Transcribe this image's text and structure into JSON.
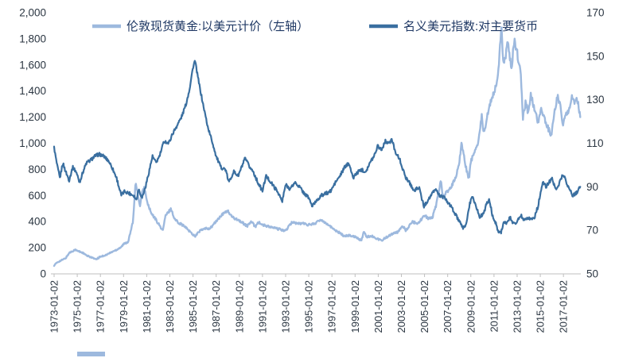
{
  "chart_data": {
    "type": "line",
    "title": "",
    "legend_position": "top",
    "grid": false,
    "legend": [
      {
        "label": "伦敦现货黄金:以美元计价（左轴）",
        "color": "#9db9de"
      },
      {
        "label": "名义美元指数:对主要货币",
        "color": "#3a6fa0"
      }
    ],
    "x_axis": {
      "range": [
        1973,
        2018.5
      ],
      "tick_years": [
        1973,
        1975,
        1977,
        1979,
        1981,
        1983,
        1985,
        1987,
        1989,
        1991,
        1993,
        1995,
        1997,
        1999,
        2001,
        2003,
        2005,
        2007,
        2009,
        2011,
        2013,
        2015,
        2017
      ],
      "tick_labels": [
        "1973-01-02",
        "1975-01-02",
        "1977-01-02",
        "1979-01-02",
        "1981-01-02",
        "1983-01-02",
        "1985-01-02",
        "1987-01-02",
        "1989-01-02",
        "1991-01-02",
        "1993-01-02",
        "1995-01-02",
        "1997-01-02",
        "1999-01-02",
        "2001-01-02",
        "2003-01-02",
        "2005-01-02",
        "2007-01-02",
        "2009-01-02",
        "2011-01-02",
        "2013-01-02",
        "2015-01-02",
        "2017-01-02"
      ]
    },
    "left_axis": {
      "min": 0,
      "max": 2000,
      "step": 200,
      "tick_labels": [
        "0",
        "200",
        "400",
        "600",
        "800",
        "1,000",
        "1,200",
        "1,400",
        "1,600",
        "1,800",
        "2,000"
      ]
    },
    "right_axis": {
      "min": 50,
      "max": 170,
      "step": 20,
      "tick_labels": [
        "50",
        "70",
        "90",
        "110",
        "130",
        "150",
        "170"
      ]
    },
    "series": [
      {
        "name": "伦敦现货黄金:以美元计价（左轴）",
        "axis": "left",
        "color": "#9db9de",
        "x": [
          1973,
          1973.3,
          1973.6,
          1974,
          1974.3,
          1974.8,
          1975,
          1975.4,
          1975.8,
          1976.2,
          1976.6,
          1977,
          1977.5,
          1978,
          1978.4,
          1978.8,
          1979,
          1979.4,
          1979.8,
          1980.05,
          1980.2,
          1980.4,
          1980.6,
          1980.8,
          1981,
          1981.4,
          1981.8,
          1982,
          1982.4,
          1982.6,
          1983.1,
          1983.4,
          1983.8,
          1984,
          1984.5,
          1985,
          1985.2,
          1985.6,
          1986,
          1986.5,
          1987,
          1987.5,
          1987.95,
          1988.4,
          1988.8,
          1989.2,
          1989.7,
          1990,
          1990.4,
          1990.6,
          1991,
          1991.5,
          1992,
          1992.6,
          1993,
          1993.6,
          1994,
          1994.5,
          1995,
          1995.5,
          1996.1,
          1996.6,
          1997,
          1997.5,
          1998,
          1998.5,
          1999,
          1999.55,
          1999.75,
          2000,
          2000.5,
          2001,
          2001.3,
          2001.8,
          2002.2,
          2002.7,
          2003.1,
          2003.4,
          2003.95,
          2004.3,
          2004.6,
          2004.95,
          2005.3,
          2005.7,
          2006,
          2006.4,
          2006.6,
          2006.9,
          2007.3,
          2007.7,
          2008,
          2008.2,
          2008.45,
          2008.65,
          2008.85,
          2009,
          2009.3,
          2009.6,
          2009.95,
          2010.1,
          2010.5,
          2010.8,
          2011,
          2011.35,
          2011.65,
          2011.8,
          2012,
          2012.2,
          2012.5,
          2012.75,
          2013,
          2013.3,
          2013.5,
          2013.75,
          2013.95,
          2014.2,
          2014.55,
          2014.85,
          2015.05,
          2015.4,
          2015.95,
          2016.2,
          2016.5,
          2016.8,
          2016.95,
          2017.2,
          2017.55,
          2017.7,
          2018,
          2018.2,
          2018.45
        ],
        "values": [
          65,
          90,
          102,
          120,
          160,
          185,
          176,
          165,
          140,
          128,
          110,
          132,
          145,
          168,
          185,
          207,
          227,
          247,
          392,
          710,
          630,
          515,
          616,
          666,
          560,
          460,
          415,
          385,
          330,
          440,
          500,
          420,
          390,
          380,
          345,
          300,
          290,
          330,
          345,
          350,
          402,
          450,
          486,
          432,
          420,
          395,
          366,
          400,
          362,
          398,
          375,
          362,
          352,
          338,
          330,
          400,
          385,
          387,
          376,
          386,
          414,
          383,
          352,
          324,
          292,
          294,
          286,
          255,
          323,
          285,
          288,
          265,
          258,
          285,
          305,
          320,
          368,
          332,
          400,
          388,
          400,
          454,
          424,
          436,
          525,
          715,
          585,
          625,
          665,
          740,
          855,
          1005,
          875,
          790,
          725,
          870,
          915,
          995,
          1212,
          1065,
          1242,
          1345,
          1390,
          1505,
          1895,
          1620,
          1655,
          1780,
          1565,
          1790,
          1690,
          1560,
          1200,
          1320,
          1230,
          1380,
          1240,
          1145,
          1285,
          1180,
          1055,
          1230,
          1360,
          1260,
          1130,
          1230,
          1260,
          1350,
          1320,
          1340,
          1200
        ]
      },
      {
        "name": "名义美元指数:对主要货币",
        "axis": "right",
        "color": "#3a6fa0",
        "x": [
          1973,
          1973.25,
          1973.5,
          1973.75,
          1974,
          1974.3,
          1974.6,
          1974.9,
          1975.2,
          1975.5,
          1975.8,
          1976.1,
          1976.5,
          1976.9,
          1977.3,
          1977.7,
          1978,
          1978.4,
          1978.8,
          1979.1,
          1979.5,
          1979.9,
          1980.1,
          1980.3,
          1980.6,
          1980.9,
          1981.2,
          1981.5,
          1981.8,
          1982.1,
          1982.5,
          1982.9,
          1983.2,
          1983.6,
          1984,
          1984.4,
          1984.7,
          1985,
          1985.17,
          1985.5,
          1985.9,
          1986.3,
          1986.7,
          1987,
          1987.4,
          1987.8,
          1988.1,
          1988.5,
          1988.9,
          1989.2,
          1989.5,
          1989.9,
          1990.2,
          1990.6,
          1991,
          1991.3,
          1991.6,
          1992,
          1992.4,
          1992.7,
          1993,
          1993.4,
          1993.8,
          1994.2,
          1994.6,
          1995,
          1995.3,
          1995.7,
          1996.1,
          1996.5,
          1996.9,
          1997.3,
          1997.7,
          1998.1,
          1998.5,
          1998.8,
          1999.1,
          1999.5,
          1999.9,
          2000.3,
          2000.7,
          2000.95,
          2001.3,
          2001.6,
          2002,
          2002.15,
          2002.5,
          2002.9,
          2003.3,
          2003.7,
          2004.1,
          2004.5,
          2004.95,
          2005.3,
          2005.7,
          2005.95,
          2006.3,
          2006.7,
          2007,
          2007.4,
          2007.8,
          2008.1,
          2008.35,
          2008.6,
          2008.9,
          2009.15,
          2009.5,
          2009.8,
          2010.1,
          2010.35,
          2010.6,
          2010.9,
          2011.1,
          2011.35,
          2011.6,
          2011.85,
          2012.1,
          2012.4,
          2012.7,
          2013,
          2013.3,
          2013.6,
          2013.9,
          2014.2,
          2014.5,
          2014.8,
          2015.05,
          2015.25,
          2015.5,
          2015.75,
          2016,
          2016.3,
          2016.6,
          2016.95,
          2017.2,
          2017.5,
          2017.8,
          2018.1,
          2018.45
        ],
        "values": [
          108,
          100,
          94,
          101,
          97,
          93,
          99,
          97,
          92,
          97,
          101,
          102,
          104,
          105,
          104,
          102,
          99,
          94,
          86,
          88,
          87,
          86,
          84,
          89,
          85,
          90,
          97,
          104,
          101,
          104,
          111,
          110,
          114,
          118,
          122,
          128,
          135,
          145,
          148,
          138,
          127,
          117,
          110,
          104,
          99,
          98,
          92,
          97,
          95,
          99,
          103,
          99,
          97,
          92,
          88,
          95,
          93,
          90,
          87,
          83,
          91,
          89,
          92,
          90,
          87,
          85,
          81,
          84,
          86,
          87,
          88,
          92,
          95,
          99,
          101,
          94,
          96,
          98,
          97,
          101,
          105,
          109,
          107,
          111,
          110,
          112,
          106,
          102,
          95,
          92,
          88,
          90,
          81,
          84,
          87,
          89,
          86,
          85,
          83,
          80,
          76,
          73,
          71,
          73,
          82,
          86,
          80,
          76,
          78,
          82,
          84,
          76,
          74,
          70,
          69,
          74,
          73,
          76,
          73,
          74,
          77,
          75,
          76,
          75,
          76,
          81,
          88,
          92,
          90,
          92,
          94,
          89,
          91,
          96,
          93,
          89,
          86,
          87,
          90
        ]
      }
    ]
  }
}
